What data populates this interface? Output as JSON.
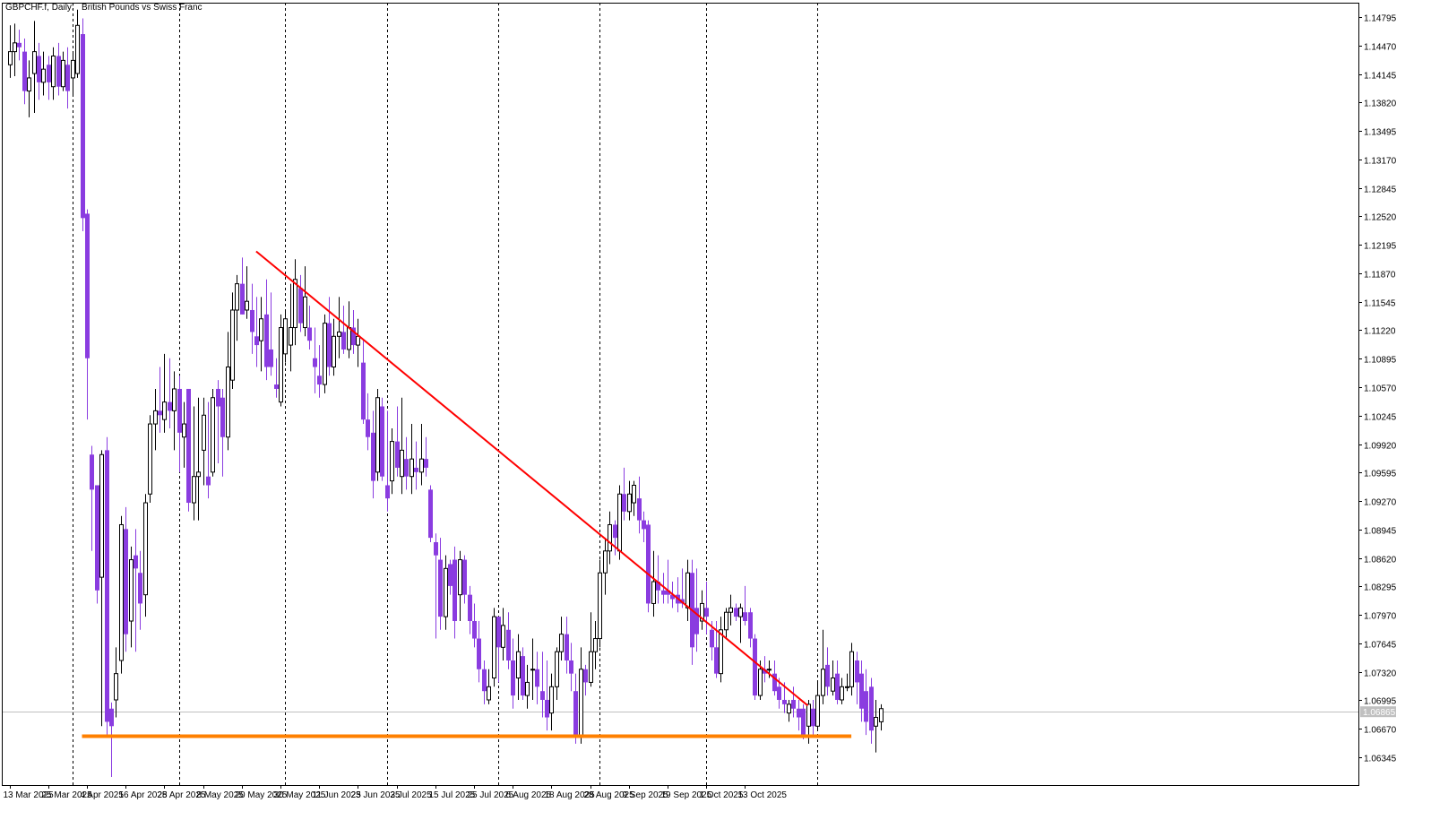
{
  "header": {
    "symbol": "GBPCHF.f",
    "timeframe": "Daily:",
    "description": "British Pounds vs Swiss Franc"
  },
  "colors": {
    "bull_candle": "#ffffff",
    "bear_candle": "#8a3ce0",
    "candle_outline": "#000000",
    "trendline": "#ff0000",
    "support_line": "#ff8000",
    "separator": "#000000",
    "current_price_line": "#c0c0c0"
  },
  "current_price": "1.06865",
  "chart_data": {
    "type": "candlestick",
    "title": "GBPCHF.f, Daily:  British Pounds vs Swiss Franc",
    "ylim": [
      1.06045,
      1.14955
    ],
    "y_ticks": [
      "1.14795",
      "1.14470",
      "1.14145",
      "1.13820",
      "1.13495",
      "1.13170",
      "1.12845",
      "1.12520",
      "1.12195",
      "1.11870",
      "1.11545",
      "1.11220",
      "1.10895",
      "1.10570",
      "1.10245",
      "1.09920",
      "1.09595",
      "1.09270",
      "1.08945",
      "1.08620",
      "1.08295",
      "1.07970",
      "1.07645",
      "1.07320",
      "1.06995",
      "1.06670",
      "1.06345"
    ],
    "x_labels": [
      "13 Mar 2025",
      "25 Mar 2025",
      "4 Apr 2025",
      "16 Apr 2025",
      "28 Apr 2025",
      "8 May 2025",
      "20 May 2025",
      "30 May 2025",
      "11 Jun 2025",
      "23 Jun 2025",
      "3 Jul 2025",
      "15 Jul 2025",
      "25 Jul 2025",
      "6 Aug 2025",
      "18 Aug 2025",
      "28 Aug 2025",
      "9 Sep 2025",
      "19 Sep 2025",
      "1 Oct 2025",
      "13 Oct 2025"
    ],
    "month_separators": [
      "Apr 2025",
      "May 2025",
      "Jun 2025",
      "Jul 2025",
      "Aug 2025",
      "Sep 2025",
      "Oct 2025",
      "Nov 2025"
    ],
    "trendline": {
      "start": {
        "date": "23 May 2025",
        "price": 1.1212
      },
      "end": {
        "date": "30 Oct 2025",
        "price": 1.06935
      }
    },
    "support_line": {
      "start": {
        "date": "3 Apr 2025",
        "price": 1.06585
      },
      "end": {
        "date": "12 Nov 2025",
        "price": 1.06585
      }
    },
    "candles": [
      {
        "o": 1.1425,
        "h": 1.147,
        "l": 1.141,
        "c": 1.144
      },
      {
        "o": 1.144,
        "h": 1.1472,
        "l": 1.1412,
        "c": 1.145
      },
      {
        "o": 1.145,
        "h": 1.1465,
        "l": 1.143,
        "c": 1.1445
      },
      {
        "o": 1.144,
        "h": 1.1455,
        "l": 1.138,
        "c": 1.1395
      },
      {
        "o": 1.1395,
        "h": 1.143,
        "l": 1.1365,
        "c": 1.141
      },
      {
        "o": 1.1415,
        "h": 1.1475,
        "l": 1.137,
        "c": 1.144
      },
      {
        "o": 1.1435,
        "h": 1.145,
        "l": 1.1385,
        "c": 1.1405
      },
      {
        "o": 1.1405,
        "h": 1.144,
        "l": 1.139,
        "c": 1.142
      },
      {
        "o": 1.1425,
        "h": 1.1435,
        "l": 1.1385,
        "c": 1.1405
      },
      {
        "o": 1.14,
        "h": 1.1445,
        "l": 1.1385,
        "c": 1.1435
      },
      {
        "o": 1.1435,
        "h": 1.145,
        "l": 1.139,
        "c": 1.14
      },
      {
        "o": 1.14,
        "h": 1.144,
        "l": 1.1395,
        "c": 1.143
      },
      {
        "o": 1.1425,
        "h": 1.1445,
        "l": 1.1375,
        "c": 1.1395
      },
      {
        "o": 1.141,
        "h": 1.144,
        "l": 1.139,
        "c": 1.143
      },
      {
        "o": 1.1415,
        "h": 1.1488,
        "l": 1.141,
        "c": 1.147
      },
      {
        "o": 1.146,
        "h": 1.1478,
        "l": 1.1235,
        "c": 1.125
      },
      {
        "o": 1.1255,
        "h": 1.126,
        "l": 1.102,
        "c": 1.109
      },
      {
        "o": 1.098,
        "h": 1.099,
        "l": 1.087,
        "c": 1.094
      },
      {
        "o": 1.0945,
        "h": 1.0945,
        "l": 1.081,
        "c": 1.0825
      },
      {
        "o": 1.084,
        "h": 1.0985,
        "l": 1.067,
        "c": 1.098
      },
      {
        "o": 1.0985,
        "h": 1.1,
        "l": 1.066,
        "c": 1.0675
      },
      {
        "o": 1.069,
        "h": 1.0697,
        "l": 1.0612,
        "c": 1.067
      },
      {
        "o": 1.07,
        "h": 1.076,
        "l": 1.068,
        "c": 1.073
      },
      {
        "o": 1.0745,
        "h": 1.091,
        "l": 1.073,
        "c": 1.09
      },
      {
        "o": 1.0895,
        "h": 1.092,
        "l": 1.0755,
        "c": 1.0775
      },
      {
        "o": 1.079,
        "h": 1.0875,
        "l": 1.076,
        "c": 1.086
      },
      {
        "o": 1.0865,
        "h": 1.0895,
        "l": 1.0755,
        "c": 1.085
      },
      {
        "o": 1.0845,
        "h": 1.087,
        "l": 1.078,
        "c": 1.081
      },
      {
        "o": 1.082,
        "h": 1.0935,
        "l": 1.0795,
        "c": 1.0925
      },
      {
        "o": 1.0935,
        "h": 1.1025,
        "l": 1.0925,
        "c": 1.1015
      },
      {
        "o": 1.1015,
        "h": 1.1055,
        "l": 1.0985,
        "c": 1.103
      },
      {
        "o": 1.103,
        "h": 1.108,
        "l": 1.1005,
        "c": 1.1025
      },
      {
        "o": 1.102,
        "h": 1.1095,
        "l": 1.1005,
        "c": 1.104
      },
      {
        "o": 1.104,
        "h": 1.109,
        "l": 1.101,
        "c": 1.103
      },
      {
        "o": 1.103,
        "h": 1.1075,
        "l": 1.0985,
        "c": 1.1055
      },
      {
        "o": 1.1055,
        "h": 1.107,
        "l": 1.096,
        "c": 1.1005
      },
      {
        "o": 1.1,
        "h": 1.104,
        "l": 1.0965,
        "c": 1.1015
      },
      {
        "o": 1.1055,
        "h": 1.1055,
        "l": 1.0915,
        "c": 1.0925
      },
      {
        "o": 1.0925,
        "h": 1.1035,
        "l": 1.0905,
        "c": 1.0955
      },
      {
        "o": 1.0955,
        "h": 1.1045,
        "l": 1.0905,
        "c": 1.096
      },
      {
        "o": 1.0985,
        "h": 1.1045,
        "l": 1.0945,
        "c": 1.1025
      },
      {
        "o": 1.0955,
        "h": 1.104,
        "l": 1.093,
        "c": 1.0945
      },
      {
        "o": 1.096,
        "h": 1.1055,
        "l": 1.0955,
        "c": 1.1045
      },
      {
        "o": 1.1055,
        "h": 1.1065,
        "l": 1.097,
        "c": 1.1035
      },
      {
        "o": 1.1045,
        "h": 1.1055,
        "l": 1.0955,
        "c": 1.1
      },
      {
        "o": 1.1,
        "h": 1.112,
        "l": 1.0985,
        "c": 1.108
      },
      {
        "o": 1.1065,
        "h": 1.1165,
        "l": 1.1055,
        "c": 1.1145
      },
      {
        "o": 1.1145,
        "h": 1.1185,
        "l": 1.111,
        "c": 1.1175
      },
      {
        "o": 1.1175,
        "h": 1.1205,
        "l": 1.114,
        "c": 1.114
      },
      {
        "o": 1.1145,
        "h": 1.1195,
        "l": 1.1135,
        "c": 1.1155
      },
      {
        "o": 1.1145,
        "h": 1.1175,
        "l": 1.1095,
        "c": 1.112
      },
      {
        "o": 1.1115,
        "h": 1.116,
        "l": 1.108,
        "c": 1.1105
      },
      {
        "o": 1.111,
        "h": 1.116,
        "l": 1.1075,
        "c": 1.1135
      },
      {
        "o": 1.114,
        "h": 1.118,
        "l": 1.1065,
        "c": 1.108
      },
      {
        "o": 1.11,
        "h": 1.1165,
        "l": 1.107,
        "c": 1.108
      },
      {
        "o": 1.106,
        "h": 1.109,
        "l": 1.1045,
        "c": 1.1055
      },
      {
        "o": 1.104,
        "h": 1.114,
        "l": 1.1035,
        "c": 1.1125
      },
      {
        "o": 1.1095,
        "h": 1.1145,
        "l": 1.1085,
        "c": 1.1135
      },
      {
        "o": 1.1105,
        "h": 1.1175,
        "l": 1.1075,
        "c": 1.1125
      },
      {
        "o": 1.1125,
        "h": 1.1203,
        "l": 1.1105,
        "c": 1.118
      },
      {
        "o": 1.117,
        "h": 1.1185,
        "l": 1.112,
        "c": 1.113
      },
      {
        "o": 1.1125,
        "h": 1.1195,
        "l": 1.1115,
        "c": 1.116
      },
      {
        "o": 1.1125,
        "h": 1.115,
        "l": 1.11,
        "c": 1.111
      },
      {
        "o": 1.109,
        "h": 1.1125,
        "l": 1.105,
        "c": 1.108
      },
      {
        "o": 1.107,
        "h": 1.1105,
        "l": 1.1045,
        "c": 1.106
      },
      {
        "o": 1.106,
        "h": 1.114,
        "l": 1.105,
        "c": 1.113
      },
      {
        "o": 1.113,
        "h": 1.116,
        "l": 1.107,
        "c": 1.108
      },
      {
        "o": 1.108,
        "h": 1.1135,
        "l": 1.107,
        "c": 1.1115
      },
      {
        "o": 1.1115,
        "h": 1.116,
        "l": 1.109,
        "c": 1.112
      },
      {
        "o": 1.112,
        "h": 1.115,
        "l": 1.1095,
        "c": 1.11
      },
      {
        "o": 1.11,
        "h": 1.1155,
        "l": 1.109,
        "c": 1.1125
      },
      {
        "o": 1.1125,
        "h": 1.1145,
        "l": 1.1095,
        "c": 1.1105
      },
      {
        "o": 1.1105,
        "h": 1.1135,
        "l": 1.108,
        "c": 1.1115
      },
      {
        "o": 1.1085,
        "h": 1.111,
        "l": 1.1015,
        "c": 1.102
      },
      {
        "o": 1.102,
        "h": 1.105,
        "l": 1.0985,
        "c": 1.1
      },
      {
        "o": 1.1005,
        "h": 1.103,
        "l": 1.093,
        "c": 1.095
      },
      {
        "o": 1.096,
        "h": 1.1055,
        "l": 1.095,
        "c": 1.1045
      },
      {
        "o": 1.1035,
        "h": 1.1045,
        "l": 1.095,
        "c": 1.0955
      },
      {
        "o": 1.0945,
        "h": 1.103,
        "l": 1.0915,
        "c": 1.093
      },
      {
        "o": 1.095,
        "h": 1.101,
        "l": 1.0935,
        "c": 1.0995
      },
      {
        "o": 1.0995,
        "h": 1.1035,
        "l": 1.0955,
        "c": 1.0965
      },
      {
        "o": 1.0955,
        "h": 1.1045,
        "l": 1.0935,
        "c": 1.0985
      },
      {
        "o": 1.0975,
        "h": 1.1,
        "l": 1.094,
        "c": 1.0955
      },
      {
        "o": 1.0955,
        "h": 1.1015,
        "l": 1.0935,
        "c": 1.0975
      },
      {
        "o": 1.0965,
        "h": 1.0995,
        "l": 1.094,
        "c": 1.096
      },
      {
        "o": 1.096,
        "h": 1.1015,
        "l": 1.0945,
        "c": 1.0975
      },
      {
        "o": 1.0975,
        "h": 1.1,
        "l": 1.0955,
        "c": 1.0965
      },
      {
        "o": 1.094,
        "h": 1.0945,
        "l": 1.088,
        "c": 1.0885
      },
      {
        "o": 1.088,
        "h": 1.089,
        "l": 1.077,
        "c": 1.0865
      },
      {
        "o": 1.086,
        "h": 1.0885,
        "l": 1.078,
        "c": 1.0795
      },
      {
        "o": 1.0795,
        "h": 1.0865,
        "l": 1.078,
        "c": 1.085
      },
      {
        "o": 1.0855,
        "h": 1.086,
        "l": 1.082,
        "c": 1.083
      },
      {
        "o": 1.086,
        "h": 1.0875,
        "l": 1.077,
        "c": 1.079
      },
      {
        "o": 1.082,
        "h": 1.087,
        "l": 1.079,
        "c": 1.086
      },
      {
        "o": 1.086,
        "h": 1.0865,
        "l": 1.081,
        "c": 1.082
      },
      {
        "o": 1.082,
        "h": 1.083,
        "l": 1.0775,
        "c": 1.079
      },
      {
        "o": 1.079,
        "h": 1.081,
        "l": 1.076,
        "c": 1.077
      },
      {
        "o": 1.077,
        "h": 1.079,
        "l": 1.072,
        "c": 1.0735
      },
      {
        "o": 1.0735,
        "h": 1.0745,
        "l": 1.0695,
        "c": 1.071
      },
      {
        "o": 1.07,
        "h": 1.0735,
        "l": 1.0695,
        "c": 1.0715
      },
      {
        "o": 1.0725,
        "h": 1.0805,
        "l": 1.0715,
        "c": 1.0795
      },
      {
        "o": 1.0795,
        "h": 1.0795,
        "l": 1.072,
        "c": 1.076
      },
      {
        "o": 1.076,
        "h": 1.0805,
        "l": 1.0745,
        "c": 1.0785
      },
      {
        "o": 1.078,
        "h": 1.08,
        "l": 1.0735,
        "c": 1.0745
      },
      {
        "o": 1.0745,
        "h": 1.077,
        "l": 1.069,
        "c": 1.0705
      },
      {
        "o": 1.0725,
        "h": 1.0775,
        "l": 1.07,
        "c": 1.0755
      },
      {
        "o": 1.075,
        "h": 1.076,
        "l": 1.07,
        "c": 1.0705
      },
      {
        "o": 1.0705,
        "h": 1.074,
        "l": 1.069,
        "c": 1.072
      },
      {
        "o": 1.0735,
        "h": 1.077,
        "l": 1.07,
        "c": 1.0735
      },
      {
        "o": 1.0735,
        "h": 1.0755,
        "l": 1.0695,
        "c": 1.0715
      },
      {
        "o": 1.071,
        "h": 1.0755,
        "l": 1.068,
        "c": 1.07
      },
      {
        "o": 1.07,
        "h": 1.0745,
        "l": 1.0665,
        "c": 1.068
      },
      {
        "o": 1.0685,
        "h": 1.073,
        "l": 1.0665,
        "c": 1.0715
      },
      {
        "o": 1.0715,
        "h": 1.076,
        "l": 1.07,
        "c": 1.0755
      },
      {
        "o": 1.0755,
        "h": 1.0795,
        "l": 1.0745,
        "c": 1.0775
      },
      {
        "o": 1.0775,
        "h": 1.0795,
        "l": 1.073,
        "c": 1.0745
      },
      {
        "o": 1.0745,
        "h": 1.0765,
        "l": 1.071,
        "c": 1.073
      },
      {
        "o": 1.071,
        "h": 1.073,
        "l": 1.065,
        "c": 1.066
      },
      {
        "o": 1.066,
        "h": 1.076,
        "l": 1.065,
        "c": 1.0735
      },
      {
        "o": 1.0735,
        "h": 1.074,
        "l": 1.0705,
        "c": 1.072
      },
      {
        "o": 1.072,
        "h": 1.08,
        "l": 1.0715,
        "c": 1.0755
      },
      {
        "o": 1.0755,
        "h": 1.079,
        "l": 1.0735,
        "c": 1.077
      },
      {
        "o": 1.077,
        "h": 1.086,
        "l": 1.076,
        "c": 1.0845
      },
      {
        "o": 1.0845,
        "h": 1.0885,
        "l": 1.082,
        "c": 1.087
      },
      {
        "o": 1.087,
        "h": 1.0915,
        "l": 1.0855,
        "c": 1.09
      },
      {
        "o": 1.09,
        "h": 1.0905,
        "l": 1.0865,
        "c": 1.0885
      },
      {
        "o": 1.087,
        "h": 1.0945,
        "l": 1.086,
        "c": 1.0935
      },
      {
        "o": 1.0935,
        "h": 1.0965,
        "l": 1.0905,
        "c": 1.0915
      },
      {
        "o": 1.0915,
        "h": 1.095,
        "l": 1.0905,
        "c": 1.0935
      },
      {
        "o": 1.0925,
        "h": 1.095,
        "l": 1.091,
        "c": 1.0945
      },
      {
        "o": 1.093,
        "h": 1.0955,
        "l": 1.089,
        "c": 1.0905
      },
      {
        "o": 1.0905,
        "h": 1.0915,
        "l": 1.088,
        "c": 1.0895
      },
      {
        "o": 1.09,
        "h": 1.0905,
        "l": 1.08,
        "c": 1.081
      },
      {
        "o": 1.081,
        "h": 1.087,
        "l": 1.0795,
        "c": 1.0835
      },
      {
        "o": 1.0835,
        "h": 1.0865,
        "l": 1.081,
        "c": 1.0825
      },
      {
        "o": 1.0825,
        "h": 1.0845,
        "l": 1.081,
        "c": 1.082
      },
      {
        "o": 1.0825,
        "h": 1.086,
        "l": 1.081,
        "c": 1.082
      },
      {
        "o": 1.082,
        "h": 1.0835,
        "l": 1.0805,
        "c": 1.0815
      },
      {
        "o": 1.082,
        "h": 1.084,
        "l": 1.08,
        "c": 1.081
      },
      {
        "o": 1.0815,
        "h": 1.085,
        "l": 1.0805,
        "c": 1.081
      },
      {
        "o": 1.0805,
        "h": 1.086,
        "l": 1.079,
        "c": 1.0845
      },
      {
        "o": 1.0845,
        "h": 1.086,
        "l": 1.074,
        "c": 1.076
      },
      {
        "o": 1.0805,
        "h": 1.085,
        "l": 1.0755,
        "c": 1.0775
      },
      {
        "o": 1.079,
        "h": 1.0825,
        "l": 1.078,
        "c": 1.081
      },
      {
        "o": 1.0805,
        "h": 1.0835,
        "l": 1.0775,
        "c": 1.0795
      },
      {
        "o": 1.078,
        "h": 1.079,
        "l": 1.0745,
        "c": 1.076
      },
      {
        "o": 1.076,
        "h": 1.079,
        "l": 1.0725,
        "c": 1.073
      },
      {
        "o": 1.073,
        "h": 1.0795,
        "l": 1.072,
        "c": 1.078
      },
      {
        "o": 1.078,
        "h": 1.0805,
        "l": 1.077,
        "c": 1.08
      },
      {
        "o": 1.08,
        "h": 1.082,
        "l": 1.0785,
        "c": 1.0805
      },
      {
        "o": 1.0805,
        "h": 1.081,
        "l": 1.079,
        "c": 1.0795
      },
      {
        "o": 1.0795,
        "h": 1.081,
        "l": 1.0765,
        "c": 1.0805
      },
      {
        "o": 1.08,
        "h": 1.083,
        "l": 1.0785,
        "c": 1.079
      },
      {
        "o": 1.08,
        "h": 1.0805,
        "l": 1.076,
        "c": 1.077
      },
      {
        "o": 1.077,
        "h": 1.0775,
        "l": 1.07,
        "c": 1.0705
      },
      {
        "o": 1.0705,
        "h": 1.0745,
        "l": 1.07,
        "c": 1.0735
      },
      {
        "o": 1.0735,
        "h": 1.075,
        "l": 1.072,
        "c": 1.073
      },
      {
        "o": 1.0735,
        "h": 1.0745,
        "l": 1.0725,
        "c": 1.0735
      },
      {
        "o": 1.073,
        "h": 1.0745,
        "l": 1.0705,
        "c": 1.071
      },
      {
        "o": 1.0715,
        "h": 1.0725,
        "l": 1.069,
        "c": 1.07
      },
      {
        "o": 1.07,
        "h": 1.072,
        "l": 1.0685,
        "c": 1.0695
      },
      {
        "o": 1.0685,
        "h": 1.07,
        "l": 1.0675,
        "c": 1.0695
      },
      {
        "o": 1.07,
        "h": 1.0715,
        "l": 1.068,
        "c": 1.069
      },
      {
        "o": 1.069,
        "h": 1.07,
        "l": 1.0665,
        "c": 1.068
      },
      {
        "o": 1.069,
        "h": 1.0695,
        "l": 1.0655,
        "c": 1.066
      },
      {
        "o": 1.067,
        "h": 1.07,
        "l": 1.065,
        "c": 1.0695
      },
      {
        "o": 1.069,
        "h": 1.07,
        "l": 1.066,
        "c": 1.067
      },
      {
        "o": 1.067,
        "h": 1.072,
        "l": 1.0665,
        "c": 1.0705
      },
      {
        "o": 1.0705,
        "h": 1.078,
        "l": 1.0695,
        "c": 1.0735
      },
      {
        "o": 1.074,
        "h": 1.076,
        "l": 1.0705,
        "c": 1.0715
      },
      {
        "o": 1.071,
        "h": 1.0745,
        "l": 1.0705,
        "c": 1.0725
      },
      {
        "o": 1.073,
        "h": 1.0745,
        "l": 1.0695,
        "c": 1.07
      },
      {
        "o": 1.07,
        "h": 1.0725,
        "l": 1.0695,
        "c": 1.0715
      },
      {
        "o": 1.0715,
        "h": 1.073,
        "l": 1.071,
        "c": 1.0715
      },
      {
        "o": 1.0715,
        "h": 1.0765,
        "l": 1.0705,
        "c": 1.0755
      },
      {
        "o": 1.0745,
        "h": 1.0755,
        "l": 1.0695,
        "c": 1.072
      },
      {
        "o": 1.073,
        "h": 1.0745,
        "l": 1.0675,
        "c": 1.069
      },
      {
        "o": 1.071,
        "h": 1.0735,
        "l": 1.066,
        "c": 1.0675
      },
      {
        "o": 1.0715,
        "h": 1.0725,
        "l": 1.065,
        "c": 1.0665
      },
      {
        "o": 1.067,
        "h": 1.07,
        "l": 1.064,
        "c": 1.068
      },
      {
        "o": 1.0675,
        "h": 1.0695,
        "l": 1.0665,
        "c": 1.069
      }
    ]
  }
}
